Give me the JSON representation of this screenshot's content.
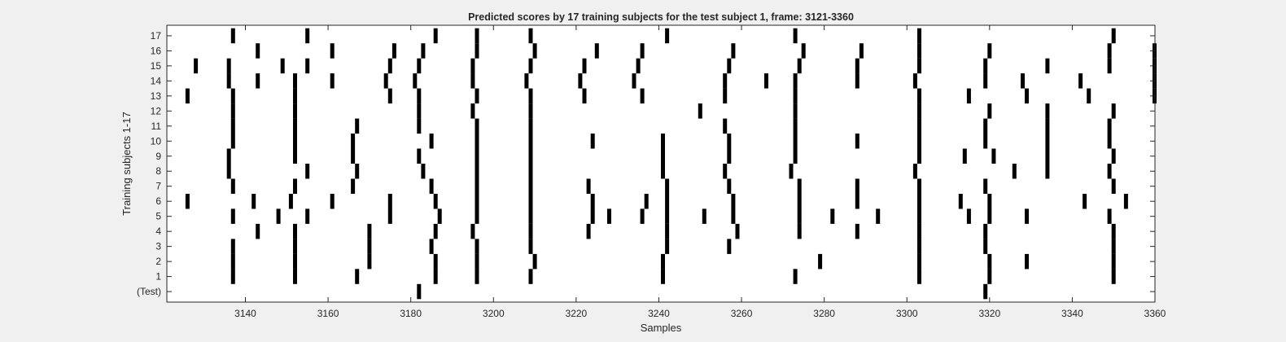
{
  "chart_data": {
    "type": "heatmap",
    "title": "Predicted scores by 17 training subjects for the test subject 1, frame: 3121-3360",
    "xlabel": "Samples",
    "ylabel": "Training subjects 1-17",
    "xlim": [
      3121,
      3360
    ],
    "x_ticks": [
      3140,
      3160,
      3180,
      3200,
      3220,
      3240,
      3260,
      3280,
      3300,
      3320,
      3340,
      3360
    ],
    "y_tick_labels": [
      "(Test)",
      "1",
      "2",
      "3",
      "4",
      "5",
      "6",
      "7",
      "8",
      "9",
      "10",
      "11",
      "12",
      "13",
      "14",
      "15",
      "16",
      "17"
    ],
    "mark_color": "#000000",
    "background_color": "#ffffff",
    "rows": [
      {
        "label": "(Test)",
        "x": [
          3182,
          3319
        ]
      },
      {
        "label": "1",
        "x": [
          3137,
          3152,
          3167,
          3186,
          3196,
          3209,
          3241,
          3273,
          3303,
          3320,
          3350
        ]
      },
      {
        "label": "2",
        "x": [
          3137,
          3152,
          3170,
          3186,
          3196,
          3210,
          3241,
          3279,
          3303,
          3320,
          3329,
          3350
        ]
      },
      {
        "label": "3",
        "x": [
          3137,
          3152,
          3170,
          3185,
          3196,
          3209,
          3242,
          3257,
          3303,
          3319,
          3350
        ]
      },
      {
        "label": "4",
        "x": [
          3143,
          3152,
          3170,
          3186,
          3195,
          3209,
          3223,
          3242,
          3259,
          3274,
          3288,
          3303,
          3319,
          3350
        ]
      },
      {
        "label": "5",
        "x": [
          3137,
          3148,
          3155,
          3175,
          3187,
          3196,
          3209,
          3224,
          3228,
          3236,
          3242,
          3251,
          3258,
          3274,
          3282,
          3293,
          3303,
          3315,
          3320,
          3329,
          3349
        ]
      },
      {
        "label": "6",
        "x": [
          3126,
          3142,
          3151,
          3161,
          3175,
          3186,
          3196,
          3209,
          3224,
          3237,
          3242,
          3258,
          3274,
          3288,
          3303,
          3313,
          3320,
          3343,
          3353
        ]
      },
      {
        "label": "7",
        "x": [
          3137,
          3152,
          3166,
          3185,
          3196,
          3209,
          3223,
          3242,
          3257,
          3274,
          3288,
          3303,
          3319,
          3350
        ]
      },
      {
        "label": "8",
        "x": [
          3136,
          3155,
          3167,
          3183,
          3196,
          3209,
          3241,
          3256,
          3272,
          3302,
          3326,
          3334,
          3349
        ]
      },
      {
        "label": "9",
        "x": [
          3136,
          3152,
          3166,
          3182,
          3196,
          3209,
          3241,
          3257,
          3273,
          3303,
          3314,
          3321,
          3334,
          3350
        ]
      },
      {
        "label": "10",
        "x": [
          3137,
          3152,
          3166,
          3185,
          3196,
          3209,
          3224,
          3241,
          3257,
          3273,
          3288,
          3303,
          3319,
          3334,
          3349
        ]
      },
      {
        "label": "11",
        "x": [
          3137,
          3152,
          3167,
          3182,
          3196,
          3209,
          3256,
          3273,
          3303,
          3319,
          3334,
          3349
        ]
      },
      {
        "label": "12",
        "x": [
          3137,
          3152,
          3182,
          3195,
          3209,
          3250,
          3273,
          3303,
          3320,
          3334,
          3350
        ]
      },
      {
        "label": "13",
        "x": [
          3126,
          3137,
          3152,
          3175,
          3182,
          3196,
          3209,
          3222,
          3236,
          3256,
          3273,
          3303,
          3315,
          3329,
          3344,
          3360
        ]
      },
      {
        "label": "14",
        "x": [
          3136,
          3143,
          3152,
          3161,
          3174,
          3181,
          3195,
          3208,
          3221,
          3234,
          3256,
          3266,
          3273,
          3288,
          3302,
          3319,
          3328,
          3342,
          3360
        ]
      },
      {
        "label": "15",
        "x": [
          3128,
          3136,
          3149,
          3155,
          3175,
          3182,
          3195,
          3209,
          3222,
          3235,
          3257,
          3274,
          3288,
          3303,
          3319,
          3334,
          3349,
          3360
        ]
      },
      {
        "label": "16",
        "x": [
          3143,
          3161,
          3176,
          3183,
          3196,
          3210,
          3225,
          3236,
          3258,
          3275,
          3289,
          3303,
          3320,
          3349,
          3360
        ]
      },
      {
        "label": "17",
        "x": [
          3137,
          3155,
          3186,
          3196,
          3209,
          3242,
          3273,
          3303,
          3350
        ]
      }
    ]
  }
}
